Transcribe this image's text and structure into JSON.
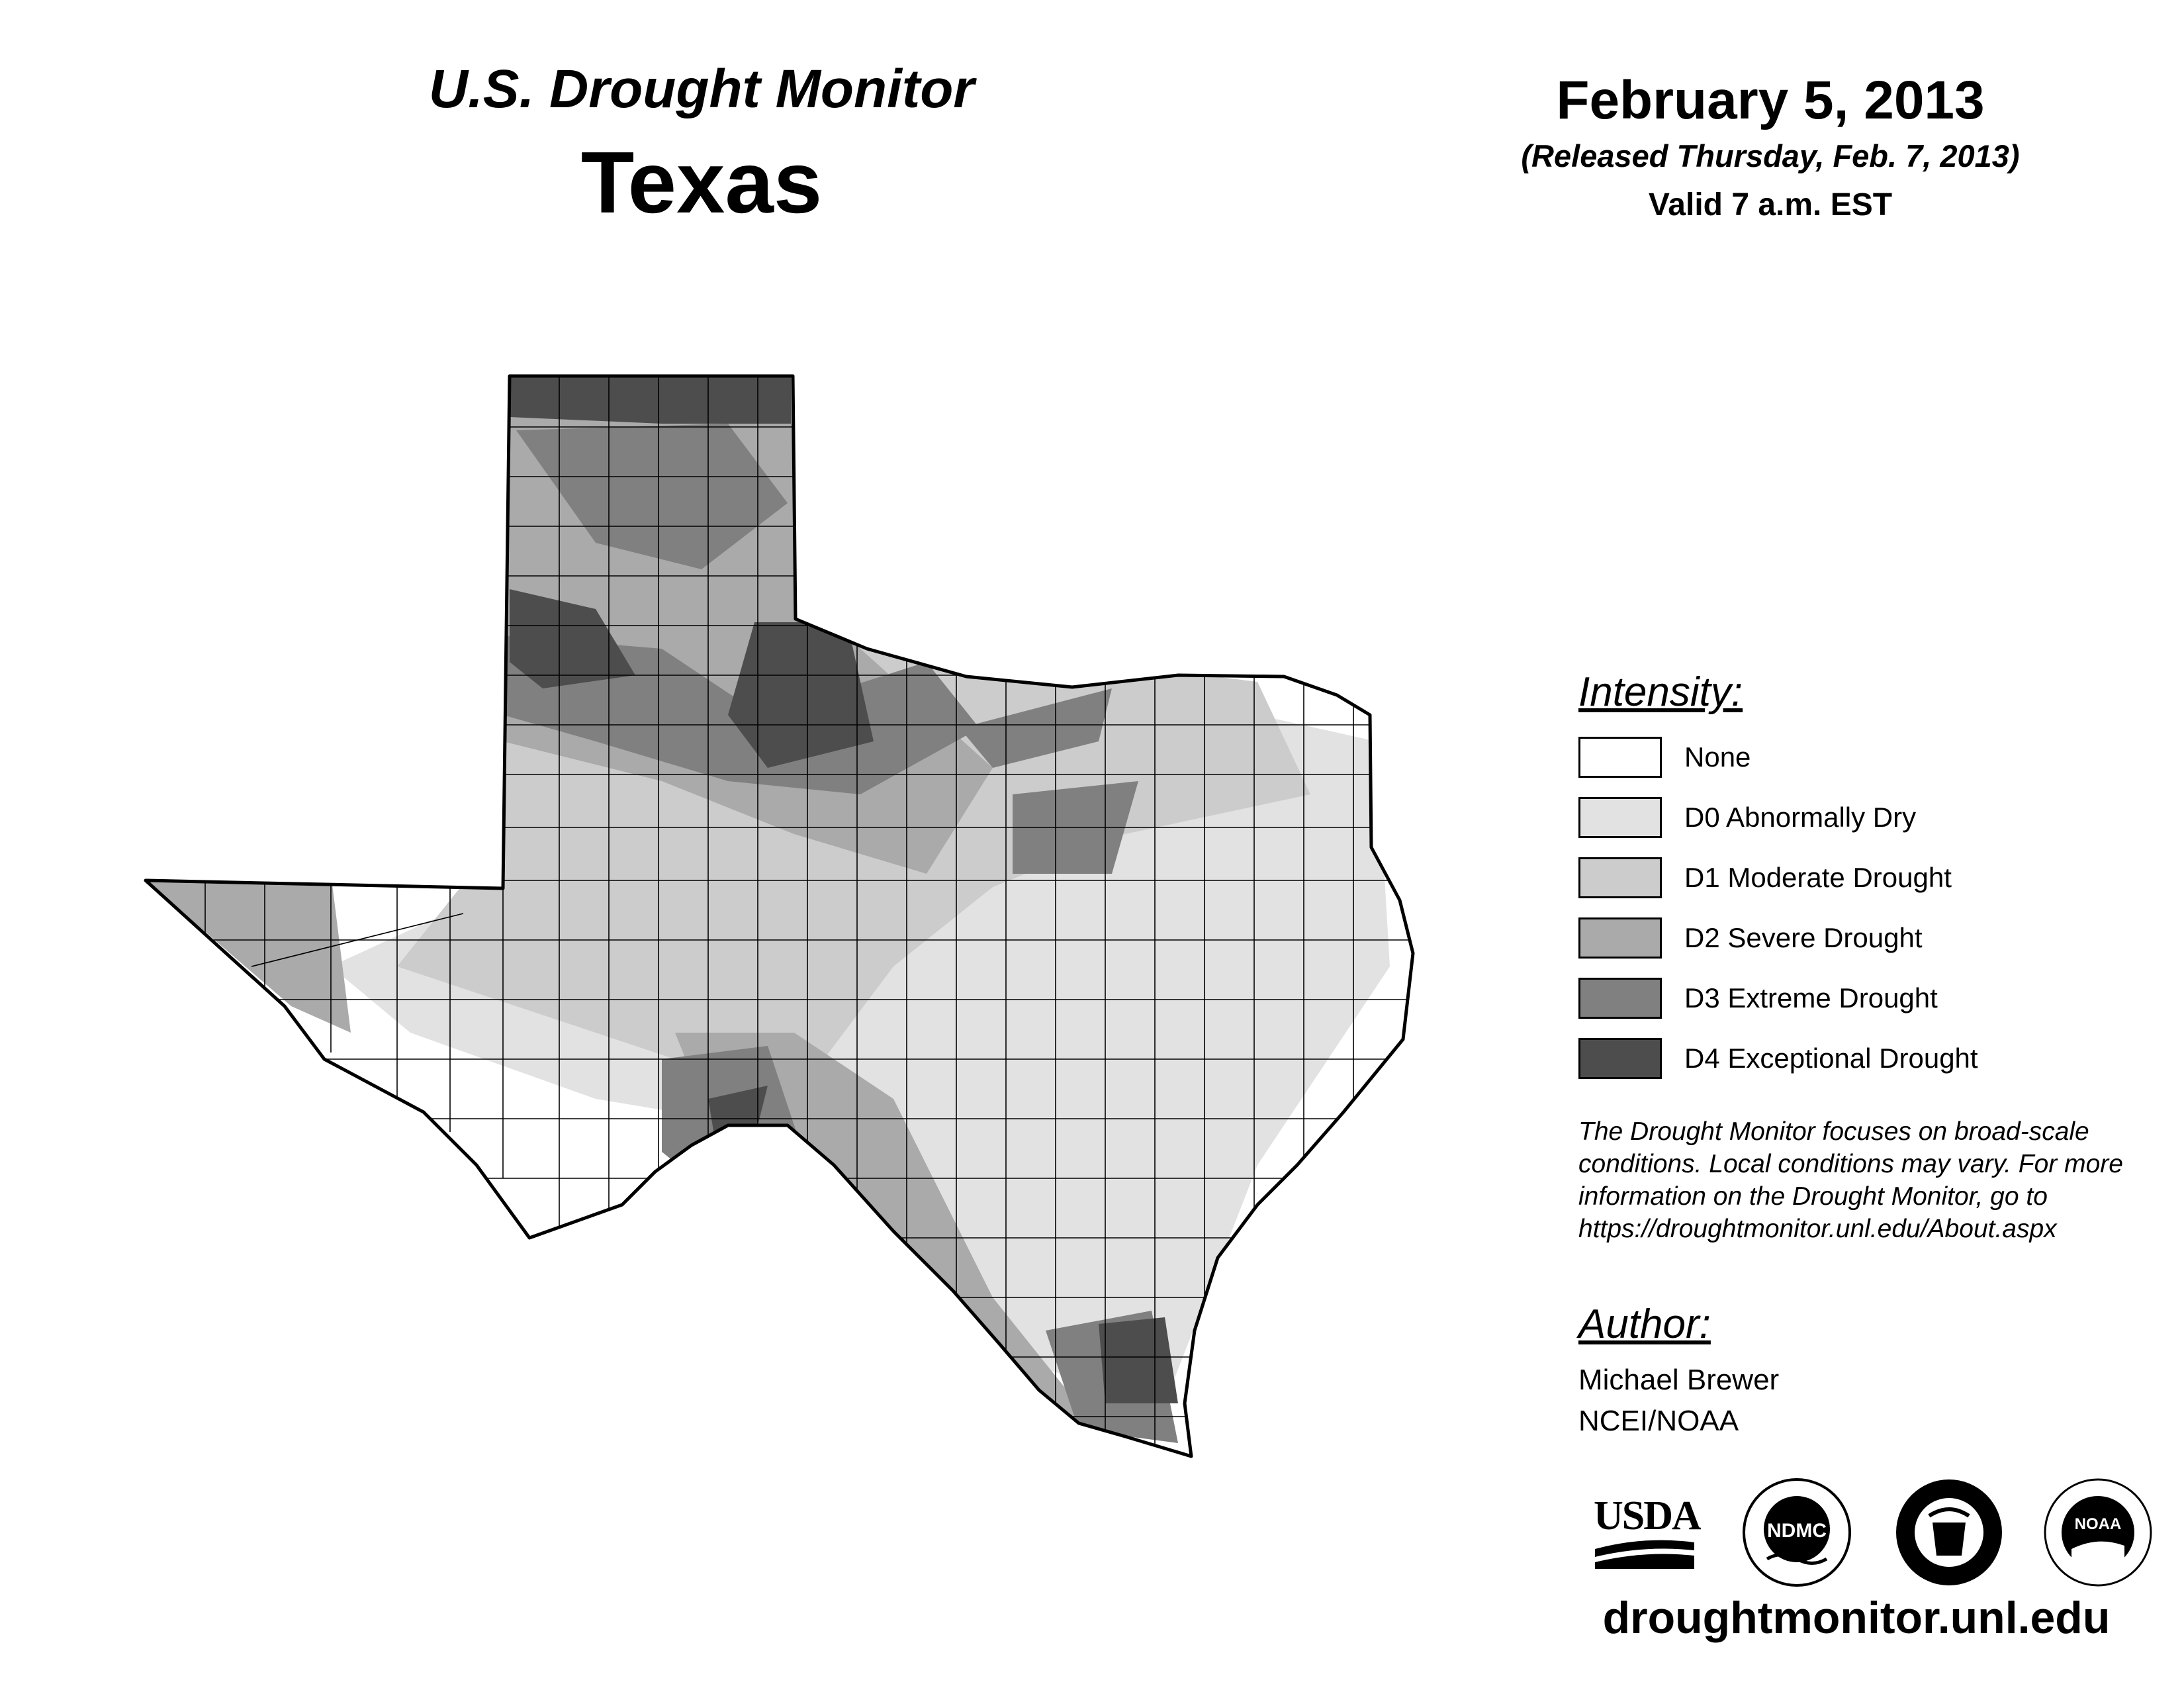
{
  "header": {
    "product": "U.S. Drought Monitor",
    "state": "Texas",
    "date": "February 5, 2013",
    "released": "(Released Thursday, Feb. 7, 2013)",
    "valid": "Valid 7 a.m. EST"
  },
  "legend": {
    "title": "Intensity:",
    "items": [
      {
        "label": "None",
        "color": "#ffffff"
      },
      {
        "label": "D0 Abnormally Dry",
        "color": "#e2e2e2"
      },
      {
        "label": "D1 Moderate Drought",
        "color": "#cccccc"
      },
      {
        "label": "D2 Severe Drought",
        "color": "#aaaaaa"
      },
      {
        "label": "D3 Extreme Drought",
        "color": "#808080"
      },
      {
        "label": "D4 Exceptional Drought",
        "color": "#4d4d4d"
      }
    ]
  },
  "note": {
    "line1": "The Drought Monitor focuses on broad-scale",
    "line2": "conditions. Local conditions may vary. For more",
    "line3": "information on the Drought Monitor, go to",
    "line4": "https://droughtmonitor.unl.edu/About.aspx"
  },
  "author": {
    "title": "Author:",
    "name": "Michael Brewer",
    "org": "NCEI/NOAA"
  },
  "logos": {
    "usda": "USDA",
    "ndmc": "NDMC",
    "noaa": "NOAA"
  },
  "footer": {
    "url": "droughtmonitor.unl.edu"
  }
}
